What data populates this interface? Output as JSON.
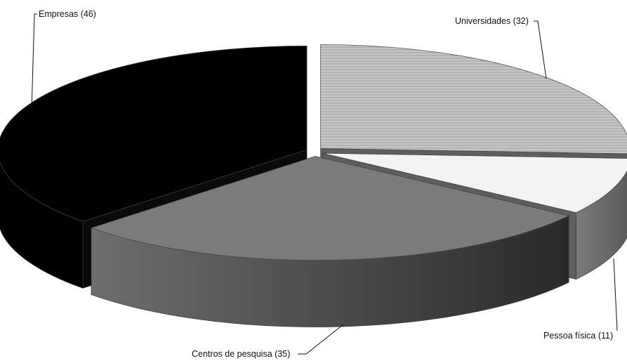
{
  "chart_data": {
    "type": "pie",
    "title": "",
    "categories": [
      "Universidades",
      "Pessoa física",
      "Centros de pesquisa",
      "Empresas"
    ],
    "values": [
      32,
      11,
      35,
      46
    ],
    "labels": [
      "Universidades (32)",
      "Pessoa física (11)",
      "Centros de pesquisa (35)",
      "Empresas (46)"
    ],
    "exploded": true,
    "style": "3d",
    "colors": {
      "Universidades": "#b8b8b8",
      "Pessoa física": "#f2f2f2",
      "Centros de pesquisa": "#787878",
      "Empresas": "#000000"
    }
  }
}
